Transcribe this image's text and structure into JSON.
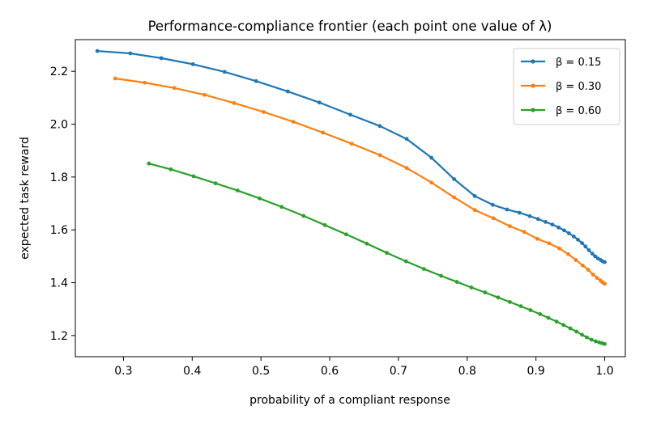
{
  "chart_data": {
    "type": "line",
    "title": "Performance-compliance frontier (each point one value of λ)",
    "xlabel": "probability of a compliant response",
    "ylabel": "expected task reward",
    "xlim": [
      0.23,
      1.03
    ],
    "ylim": [
      1.12,
      2.32
    ],
    "xticks": [
      0.3,
      0.4,
      0.5,
      0.6,
      0.7,
      0.8,
      0.9,
      1.0
    ],
    "xtick_labels": [
      "0.3",
      "0.4",
      "0.5",
      "0.6",
      "0.7",
      "0.8",
      "0.9",
      "1.0"
    ],
    "yticks": [
      1.2,
      1.4,
      1.6,
      1.8,
      2.0,
      2.2
    ],
    "ytick_labels": [
      "1.2",
      "1.4",
      "1.6",
      "1.8",
      "2.0",
      "2.2"
    ],
    "grid": false,
    "legend_position": "top-right",
    "series": [
      {
        "name": "β = 0.15",
        "color": "#1f77b4",
        "x": [
          0.262,
          0.31,
          0.355,
          0.401,
          0.447,
          0.493,
          0.539,
          0.585,
          0.63,
          0.673,
          0.712,
          0.748,
          0.781,
          0.811,
          0.837,
          0.858,
          0.876,
          0.891,
          0.903,
          0.914,
          0.924,
          0.933,
          0.941,
          0.948,
          0.955,
          0.961,
          0.967,
          0.972,
          0.977,
          0.982,
          0.986,
          0.99,
          0.994,
          0.997,
          1.0
        ],
        "y": [
          2.277,
          2.268,
          2.25,
          2.227,
          2.198,
          2.163,
          2.124,
          2.082,
          2.036,
          1.993,
          1.944,
          1.873,
          1.792,
          1.728,
          1.695,
          1.677,
          1.665,
          1.652,
          1.641,
          1.63,
          1.62,
          1.609,
          1.598,
          1.587,
          1.575,
          1.563,
          1.55,
          1.537,
          1.523,
          1.51,
          1.5,
          1.492,
          1.486,
          1.481,
          1.478
        ]
      },
      {
        "name": "β = 0.30",
        "color": "#ff7f0e",
        "x": [
          0.288,
          0.331,
          0.374,
          0.418,
          0.461,
          0.504,
          0.547,
          0.59,
          0.632,
          0.673,
          0.712,
          0.748,
          0.781,
          0.811,
          0.838,
          0.862,
          0.883,
          0.902,
          0.919,
          0.934,
          0.947,
          0.958,
          0.968,
          0.976,
          0.983,
          0.989,
          0.994,
          0.997,
          1.0
        ],
        "y": [
          2.173,
          2.157,
          2.137,
          2.111,
          2.08,
          2.046,
          2.009,
          1.968,
          1.926,
          1.883,
          1.834,
          1.779,
          1.723,
          1.675,
          1.644,
          1.614,
          1.592,
          1.566,
          1.549,
          1.53,
          1.508,
          1.486,
          1.465,
          1.449,
          1.431,
          1.418,
          1.408,
          1.401,
          1.396
        ]
      },
      {
        "name": "β = 0.60",
        "color": "#2ca02c",
        "x": [
          0.337,
          0.369,
          0.402,
          0.434,
          0.466,
          0.498,
          0.53,
          0.562,
          0.593,
          0.624,
          0.654,
          0.683,
          0.711,
          0.737,
          0.762,
          0.785,
          0.806,
          0.826,
          0.845,
          0.862,
          0.878,
          0.892,
          0.906,
          0.918,
          0.93,
          0.94,
          0.95,
          0.959,
          0.967,
          0.974,
          0.981,
          0.987,
          0.992,
          0.996,
          1.0
        ],
        "y": [
          1.851,
          1.829,
          1.803,
          1.776,
          1.749,
          1.719,
          1.687,
          1.653,
          1.618,
          1.583,
          1.548,
          1.513,
          1.481,
          1.452,
          1.426,
          1.403,
          1.382,
          1.363,
          1.344,
          1.327,
          1.311,
          1.296,
          1.281,
          1.267,
          1.253,
          1.24,
          1.227,
          1.215,
          1.203,
          1.193,
          1.184,
          1.178,
          1.174,
          1.171,
          1.168
        ]
      }
    ]
  }
}
